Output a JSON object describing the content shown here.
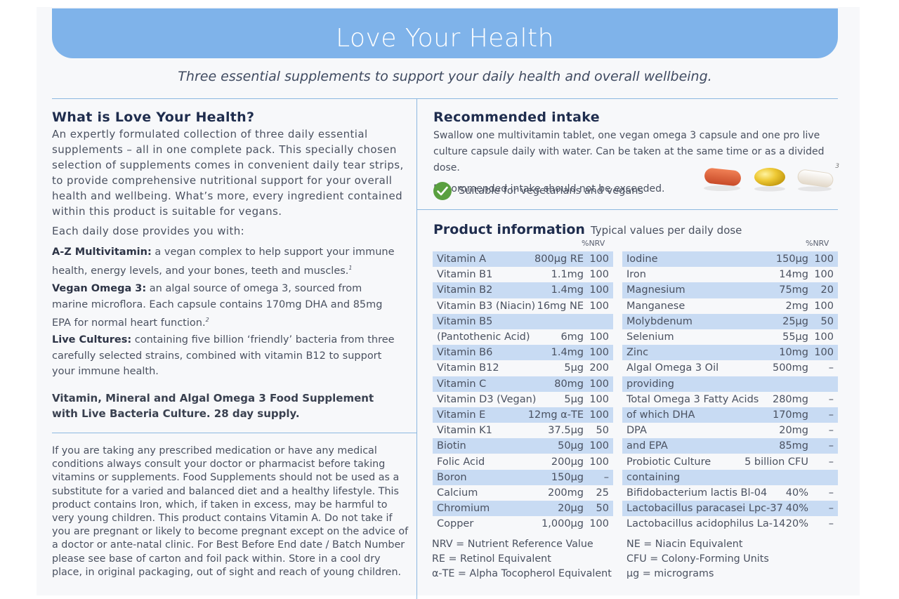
{
  "header": {
    "title": "Love Your Health"
  },
  "subtitle": "Three essential supplements to support your daily health and overall wellbeing.",
  "what": {
    "heading": "What is Love Your Health?",
    "lines": [
      "An expertly formulated collection of three daily essential",
      "supplements – all in one complete pack. This specially chosen",
      "selection of supplements comes in convenient daily tear strips,",
      "to provide comprehensive nutritional support for your overall",
      "health and wellbeing. What’s more, every ingredient contained",
      "within this product is suitable for vegans."
    ],
    "each_dose": "Each daily dose provides you with:",
    "items": [
      {
        "bold": "A-Z Multivitamin:",
        "text": " a vegan complex to help support your immune health, energy levels, and your bones, teeth and muscles.",
        "sup": "1"
      },
      {
        "bold": "Vegan Omega 3:",
        "text": " an algal source of omega 3, sourced from marine microflora. Each capsule contains 170mg DHA and 85mg EPA for normal heart function.",
        "sup": "2"
      },
      {
        "bold": "Live Cultures:",
        "text": " containing five billion ‘friendly’ bacteria from three carefully selected strains, combined with vitamin B12 to support your immune health.",
        "sup": ""
      }
    ],
    "food_supplement": "Vitamin, Mineral and Algal Omega 3 Food Supplement with Live Bacteria Culture. 28 day supply."
  },
  "warning": "If you are taking any prescribed medication or have any medical conditions always consult your doctor or pharmacist before taking vitamins or supplements. Food Supplements should not be used as a substitute for a varied and balanced diet and a healthy lifestyle. This product contains Iron, which, if taken in excess, may be harmful to very young children. This product contains Vitamin A. Do not take if you are pregnant or likely to become pregnant except on the advice of a doctor or ante-natal clinic. For Best Before End date / Batch Number please see base of carton and foil pack within. Store in a cool dry place, in original packaging, out of sight and reach of young children.",
  "intake": {
    "heading": "Recommended intake",
    "line1": "Swallow one multivitamin tablet, one vegan omega 3 capsule and one pro live",
    "line2": "culture capsule daily with water. Can be taken at the same time or as a divided dose.",
    "limit": "Recommended intake should not be exceeded.",
    "vegan": "Suitable for vegetarians and vegans",
    "pill_note": "3",
    "colors": {
      "tablet": "#e0603a",
      "omega": "#e8c030",
      "culture": "#f2ece4",
      "check": "#5aa040"
    }
  },
  "product": {
    "heading": "Product information",
    "subheading": "Typical values per daily dose",
    "nrv_header": "%NRV",
    "left": [
      {
        "n": "Vitamin A",
        "v": "800µg RE",
        "p": "100"
      },
      {
        "n": "Vitamin B1",
        "v": "1.1mg",
        "p": "100"
      },
      {
        "n": "Vitamin B2",
        "v": "1.4mg",
        "p": "100"
      },
      {
        "n": "Vitamin B3 (Niacin)",
        "v": "16mg NE",
        "p": "100"
      },
      {
        "n": "Vitamin B5",
        "v": "",
        "p": ""
      },
      {
        "n": "(Pantothenic Acid)",
        "v": "6mg",
        "p": "100"
      },
      {
        "n": "Vitamin B6",
        "v": "1.4mg",
        "p": "100"
      },
      {
        "n": "Vitamin B12",
        "v": "5µg",
        "p": "200"
      },
      {
        "n": "Vitamin C",
        "v": "80mg",
        "p": "100"
      },
      {
        "n": "Vitamin D3 (Vegan)",
        "v": "5µg",
        "p": "100"
      },
      {
        "n": "Vitamin E",
        "v": "12mg α-TE",
        "p": "100"
      },
      {
        "n": "Vitamin K1",
        "v": "37.5µg",
        "p": "50"
      },
      {
        "n": "Biotin",
        "v": "50µg",
        "p": "100"
      },
      {
        "n": "Folic Acid",
        "v": "200µg",
        "p": "100"
      },
      {
        "n": "Boron",
        "v": "150µg",
        "p": "–"
      },
      {
        "n": "Calcium",
        "v": "200mg",
        "p": "25"
      },
      {
        "n": "Chromium",
        "v": "20µg",
        "p": "50"
      },
      {
        "n": "Copper",
        "v": "1,000µg",
        "p": "100"
      }
    ],
    "right": [
      {
        "n": "Iodine",
        "v": "150µg",
        "p": "100"
      },
      {
        "n": "Iron",
        "v": "14mg",
        "p": "100"
      },
      {
        "n": "Magnesium",
        "v": "75mg",
        "p": "20"
      },
      {
        "n": "Manganese",
        "v": "2mg",
        "p": "100"
      },
      {
        "n": "Molybdenum",
        "v": "25µg",
        "p": "50"
      },
      {
        "n": "Selenium",
        "v": "55µg",
        "p": "100"
      },
      {
        "n": "Zinc",
        "v": "10mg",
        "p": "100"
      },
      {
        "n": "Algal Omega 3 Oil",
        "v": "500mg",
        "p": "–"
      },
      {
        "n": "providing",
        "v": "",
        "p": ""
      },
      {
        "n": "Total Omega 3 Fatty Acids",
        "v": "280mg",
        "p": "–"
      },
      {
        "n": "of which DHA",
        "v": "170mg",
        "p": "–"
      },
      {
        "n": "DPA",
        "v": "20mg",
        "p": "–"
      },
      {
        "n": "and EPA",
        "v": "85mg",
        "p": "–"
      },
      {
        "n": "Probiotic Culture",
        "v": "5 billion CFU",
        "p": "–"
      },
      {
        "n": "containing",
        "v": "",
        "p": ""
      },
      {
        "n": "Bifidobacterium lactis Bl-04",
        "v": "40%",
        "p": "–"
      },
      {
        "n": "Lactobacillus paracasei Lpc-37",
        "v": "40%",
        "p": "–"
      },
      {
        "n": "Lactobacillus acidophilus La-14",
        "v": "20%",
        "p": "–"
      }
    ],
    "legend_left": [
      "NRV = Nutrient Reference Value",
      "RE = Retinol Equivalent",
      "α-TE = Alpha Tocopherol Equivalent"
    ],
    "legend_right": [
      "NE = Niacin Equivalent",
      "CFU = Colony-Forming Units",
      "µg = micrograms"
    ]
  }
}
